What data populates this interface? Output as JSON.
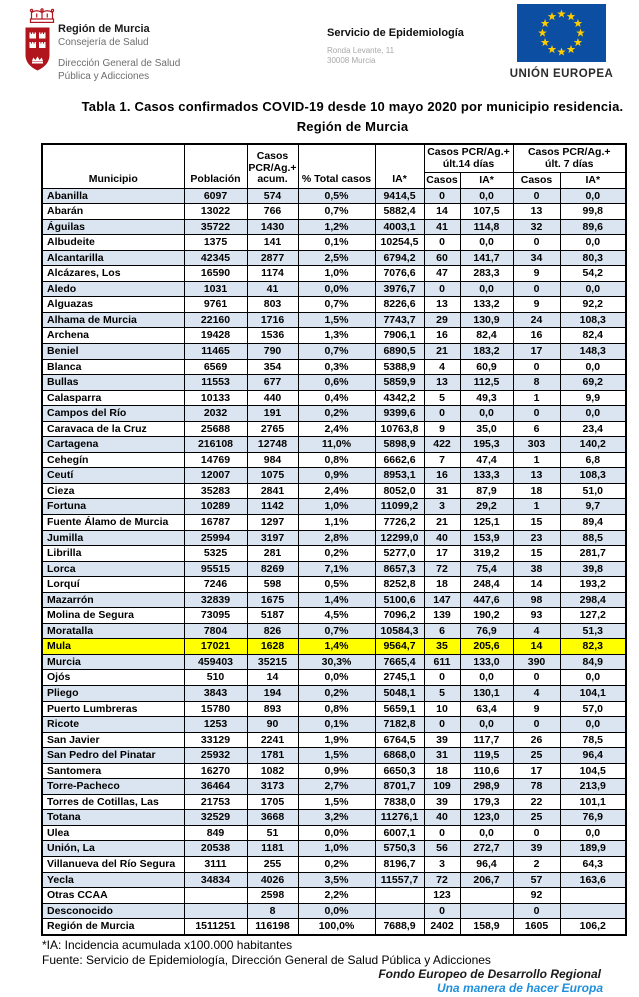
{
  "header": {
    "logo": {
      "org": "Región de Murcia",
      "dept": "Consejería de Salud",
      "sub": "Dirección General de Salud\nPública y Adicciones"
    },
    "center": {
      "service": "Servicio de Epidemiología",
      "address_line1": "Ronda Levante, 11",
      "address_line2": "30008 Murcia"
    },
    "eu": {
      "label": "UNIÓN EUROPEA"
    }
  },
  "title": {
    "line1": "Tabla 1. Casos confirmados COVID-19 desde 10 mayo 2020 por municipio residencia.",
    "line2": "Región de Murcia"
  },
  "table": {
    "columns": {
      "municipio": "Municipio",
      "poblacion": "Población",
      "casos_acum": "Casos\nPCR/Ag.+\nacum.",
      "pct_total": "% Total casos",
      "ia": "IA*",
      "group14": "Casos PCR/Ag.+\núlt.14 días",
      "group7": "Casos PCR/Ag.+\núlt. 7 días",
      "sub_casos": "Casos",
      "sub_ia": "IA*"
    },
    "highlight": "Mula",
    "rows": [
      [
        "Abanilla",
        "6097",
        "574",
        "0,5%",
        "9414,5",
        "0",
        "0,0",
        "0",
        "0,0"
      ],
      [
        "Abarán",
        "13022",
        "766",
        "0,7%",
        "5882,4",
        "14",
        "107,5",
        "13",
        "99,8"
      ],
      [
        "Águilas",
        "35722",
        "1430",
        "1,2%",
        "4003,1",
        "41",
        "114,8",
        "32",
        "89,6"
      ],
      [
        "Albudeite",
        "1375",
        "141",
        "0,1%",
        "10254,5",
        "0",
        "0,0",
        "0",
        "0,0"
      ],
      [
        "Alcantarilla",
        "42345",
        "2877",
        "2,5%",
        "6794,2",
        "60",
        "141,7",
        "34",
        "80,3"
      ],
      [
        "Alcázares, Los",
        "16590",
        "1174",
        "1,0%",
        "7076,6",
        "47",
        "283,3",
        "9",
        "54,2"
      ],
      [
        "Aledo",
        "1031",
        "41",
        "0,0%",
        "3976,7",
        "0",
        "0,0",
        "0",
        "0,0"
      ],
      [
        "Alguazas",
        "9761",
        "803",
        "0,7%",
        "8226,6",
        "13",
        "133,2",
        "9",
        "92,2"
      ],
      [
        "Alhama de Murcia",
        "22160",
        "1716",
        "1,5%",
        "7743,7",
        "29",
        "130,9",
        "24",
        "108,3"
      ],
      [
        "Archena",
        "19428",
        "1536",
        "1,3%",
        "7906,1",
        "16",
        "82,4",
        "16",
        "82,4"
      ],
      [
        "Beniel",
        "11465",
        "790",
        "0,7%",
        "6890,5",
        "21",
        "183,2",
        "17",
        "148,3"
      ],
      [
        "Blanca",
        "6569",
        "354",
        "0,3%",
        "5388,9",
        "4",
        "60,9",
        "0",
        "0,0"
      ],
      [
        "Bullas",
        "11553",
        "677",
        "0,6%",
        "5859,9",
        "13",
        "112,5",
        "8",
        "69,2"
      ],
      [
        "Calasparra",
        "10133",
        "440",
        "0,4%",
        "4342,2",
        "5",
        "49,3",
        "1",
        "9,9"
      ],
      [
        "Campos del Río",
        "2032",
        "191",
        "0,2%",
        "9399,6",
        "0",
        "0,0",
        "0",
        "0,0"
      ],
      [
        "Caravaca de la Cruz",
        "25688",
        "2765",
        "2,4%",
        "10763,8",
        "9",
        "35,0",
        "6",
        "23,4"
      ],
      [
        "Cartagena",
        "216108",
        "12748",
        "11,0%",
        "5898,9",
        "422",
        "195,3",
        "303",
        "140,2"
      ],
      [
        "Cehegín",
        "14769",
        "984",
        "0,8%",
        "6662,6",
        "7",
        "47,4",
        "1",
        "6,8"
      ],
      [
        "Ceutí",
        "12007",
        "1075",
        "0,9%",
        "8953,1",
        "16",
        "133,3",
        "13",
        "108,3"
      ],
      [
        "Cieza",
        "35283",
        "2841",
        "2,4%",
        "8052,0",
        "31",
        "87,9",
        "18",
        "51,0"
      ],
      [
        "Fortuna",
        "10289",
        "1142",
        "1,0%",
        "11099,2",
        "3",
        "29,2",
        "1",
        "9,7"
      ],
      [
        "Fuente Álamo de Murcia",
        "16787",
        "1297",
        "1,1%",
        "7726,2",
        "21",
        "125,1",
        "15",
        "89,4"
      ],
      [
        "Jumilla",
        "25994",
        "3197",
        "2,8%",
        "12299,0",
        "40",
        "153,9",
        "23",
        "88,5"
      ],
      [
        "Librilla",
        "5325",
        "281",
        "0,2%",
        "5277,0",
        "17",
        "319,2",
        "15",
        "281,7"
      ],
      [
        "Lorca",
        "95515",
        "8269",
        "7,1%",
        "8657,3",
        "72",
        "75,4",
        "38",
        "39,8"
      ],
      [
        "Lorquí",
        "7246",
        "598",
        "0,5%",
        "8252,8",
        "18",
        "248,4",
        "14",
        "193,2"
      ],
      [
        "Mazarrón",
        "32839",
        "1675",
        "1,4%",
        "5100,6",
        "147",
        "447,6",
        "98",
        "298,4"
      ],
      [
        "Molina de Segura",
        "73095",
        "5187",
        "4,5%",
        "7096,2",
        "139",
        "190,2",
        "93",
        "127,2"
      ],
      [
        "Moratalla",
        "7804",
        "826",
        "0,7%",
        "10584,3",
        "6",
        "76,9",
        "4",
        "51,3"
      ],
      [
        "Mula",
        "17021",
        "1628",
        "1,4%",
        "9564,7",
        "35",
        "205,6",
        "14",
        "82,3"
      ],
      [
        "Murcia",
        "459403",
        "35215",
        "30,3%",
        "7665,4",
        "611",
        "133,0",
        "390",
        "84,9"
      ],
      [
        "Ojós",
        "510",
        "14",
        "0,0%",
        "2745,1",
        "0",
        "0,0",
        "0",
        "0,0"
      ],
      [
        "Pliego",
        "3843",
        "194",
        "0,2%",
        "5048,1",
        "5",
        "130,1",
        "4",
        "104,1"
      ],
      [
        "Puerto Lumbreras",
        "15780",
        "893",
        "0,8%",
        "5659,1",
        "10",
        "63,4",
        "9",
        "57,0"
      ],
      [
        "Ricote",
        "1253",
        "90",
        "0,1%",
        "7182,8",
        "0",
        "0,0",
        "0",
        "0,0"
      ],
      [
        "San Javier",
        "33129",
        "2241",
        "1,9%",
        "6764,5",
        "39",
        "117,7",
        "26",
        "78,5"
      ],
      [
        "San Pedro del Pinatar",
        "25932",
        "1781",
        "1,5%",
        "6868,0",
        "31",
        "119,5",
        "25",
        "96,4"
      ],
      [
        "Santomera",
        "16270",
        "1082",
        "0,9%",
        "6650,3",
        "18",
        "110,6",
        "17",
        "104,5"
      ],
      [
        "Torre-Pacheco",
        "36464",
        "3173",
        "2,7%",
        "8701,7",
        "109",
        "298,9",
        "78",
        "213,9"
      ],
      [
        "Torres de Cotillas, Las",
        "21753",
        "1705",
        "1,5%",
        "7838,0",
        "39",
        "179,3",
        "22",
        "101,1"
      ],
      [
        "Totana",
        "32529",
        "3668",
        "3,2%",
        "11276,1",
        "40",
        "123,0",
        "25",
        "76,9"
      ],
      [
        "Ulea",
        "849",
        "51",
        "0,0%",
        "6007,1",
        "0",
        "0,0",
        "0",
        "0,0"
      ],
      [
        "Unión, La",
        "20538",
        "1181",
        "1,0%",
        "5750,3",
        "56",
        "272,7",
        "39",
        "189,9"
      ],
      [
        "Villanueva del Río Segura",
        "3111",
        "255",
        "0,2%",
        "8196,7",
        "3",
        "96,4",
        "2",
        "64,3"
      ],
      [
        "Yecla",
        "34834",
        "4026",
        "3,5%",
        "11557,7",
        "72",
        "206,7",
        "57",
        "163,6"
      ],
      [
        "Otras CCAA",
        "",
        "2598",
        "2,2%",
        "",
        "123",
        "",
        "92",
        ""
      ],
      [
        "Desconocido",
        "",
        "8",
        "0,0%",
        "",
        "0",
        "",
        "0",
        ""
      ]
    ],
    "total_row": [
      "Región de Murcia",
      "1511251",
      "116198",
      "100,0%",
      "7688,9",
      "2402",
      "158,9",
      "1605",
      "106,2"
    ]
  },
  "footnotes": {
    "ia_note": "*IA: Incidencia acumulada x100.000 habitantes",
    "source": "Fuente: Servicio de Epidemiología, Dirección General de Salud Pública y Adicciones",
    "eu_fund": "Fondo Europeo de Desarrollo Regional",
    "eu_motto": "Una manera de hacer Europa"
  },
  "colors": {
    "row_stripe": "#dbe5f1",
    "highlight": "#ffff00",
    "eu_flag_blue": "#0b4ea2",
    "eu_star_yellow": "#ffcc00",
    "logo_red": "#b0151d",
    "motto_blue": "#1f8fdc"
  }
}
